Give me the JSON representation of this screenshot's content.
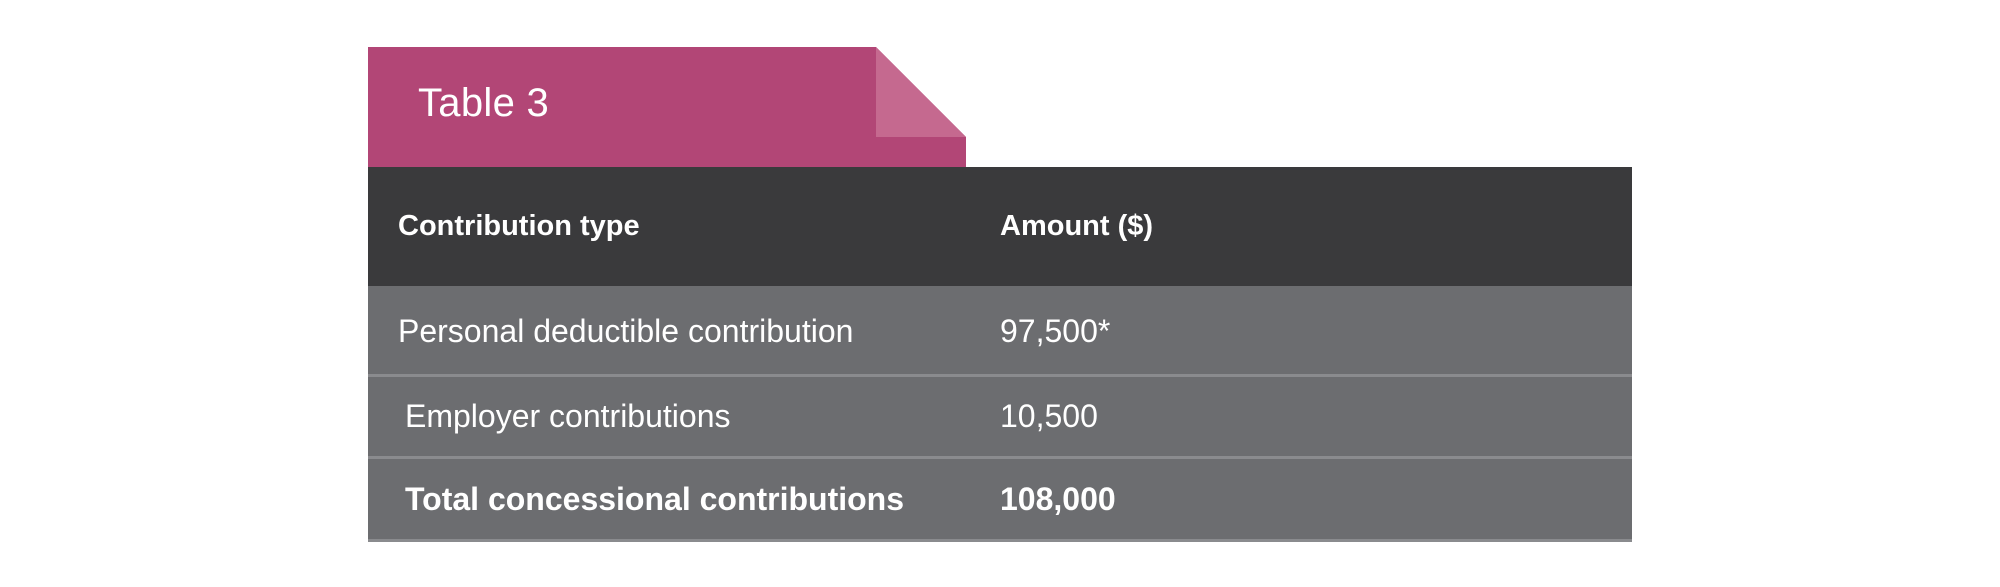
{
  "tab": {
    "label": "Table 3"
  },
  "table": {
    "headers": {
      "type": "Contribution type",
      "amount": "Amount ($)"
    },
    "rows": [
      {
        "type": "Personal deductible contribution",
        "amount": "97,500*"
      },
      {
        "type": "Employer contributions",
        "amount": "10,500"
      },
      {
        "type": "Total concessional contributions",
        "amount": "108,000"
      }
    ]
  },
  "colors": {
    "tab": "#b24676",
    "tab_fold": "#c5698f",
    "header_bg": "#3a3a3c",
    "row_bg": "#6c6d70",
    "text": "#ffffff"
  }
}
